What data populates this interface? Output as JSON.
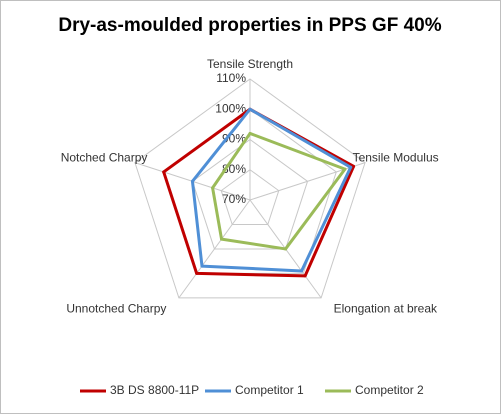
{
  "chart_data": {
    "type": "radar",
    "title": "Dry-as-moulded properties in PPS GF 40%",
    "categories": [
      "Tensile Strength",
      "Tensile Modulus",
      "Elongation at break",
      "Unnotched Charpy",
      "Notched Charpy"
    ],
    "series": [
      {
        "name": "3B DS 8800-11P",
        "color": "#c00000",
        "values": [
          100,
          106,
          101,
          100,
          100
        ]
      },
      {
        "name": "Competitor 1",
        "color": "#4f8fd6",
        "values": [
          100,
          105,
          99,
          97,
          90
        ]
      },
      {
        "name": "Competitor 2",
        "color": "#9bbb59",
        "values": [
          92,
          103,
          90,
          86,
          83
        ]
      }
    ],
    "ylim": [
      70,
      110
    ],
    "yticks": [
      {
        "value": 70,
        "label": "70%"
      },
      {
        "value": 80,
        "label": "80%"
      },
      {
        "value": 90,
        "label": "90%"
      },
      {
        "value": 100,
        "label": "100%"
      },
      {
        "value": 110,
        "label": "110%"
      }
    ],
    "grid": true,
    "legend": "bottom"
  }
}
